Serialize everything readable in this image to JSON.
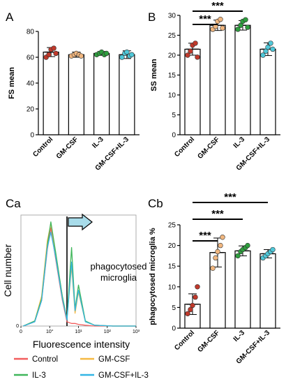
{
  "panels": {
    "A": "A",
    "B": "B",
    "Ca": "Ca",
    "Cb": "Cb"
  },
  "significance": "***",
  "chart_data": [
    {
      "id": "A",
      "type": "bar",
      "ylabel": "FS mean",
      "ylim": [
        0,
        80
      ],
      "yticks": [
        "0",
        "20",
        "40",
        "60",
        "80"
      ],
      "categories": [
        "Control",
        "GM-CSF",
        "IL-3",
        "GM-CSF+IL-3"
      ],
      "values": [
        64,
        62,
        63,
        62
      ],
      "errors": [
        3.5,
        2,
        1.5,
        3
      ],
      "points": [
        [
          60,
          62,
          66,
          67,
          63
        ],
        [
          61,
          62,
          63,
          62,
          61
        ],
        [
          62,
          63,
          64,
          62,
          63
        ],
        [
          60,
          63,
          64,
          61,
          62
        ]
      ],
      "point_colors": [
        "#c0392b",
        "#f0b67f",
        "#2e9e3e",
        "#4fc7d8"
      ],
      "significance": []
    },
    {
      "id": "B",
      "type": "bar",
      "ylabel": "SS mean",
      "ylim": [
        0,
        30
      ],
      "yticks": [
        "0",
        "5",
        "10",
        "15",
        "20",
        "25",
        "30"
      ],
      "categories": [
        "Control",
        "GM-CSF",
        "IL-3",
        "GM-CSF+IL-3"
      ],
      "values": [
        21.5,
        27.5,
        27.5,
        21.5
      ],
      "errors": [
        1.5,
        1.3,
        1.2,
        1.6
      ],
      "points": [
        [
          20,
          21,
          22.5,
          23,
          19.5
        ],
        [
          26.5,
          27.2,
          28.5,
          29,
          26.8
        ],
        [
          26.5,
          27.5,
          28.5,
          28.9,
          27
        ],
        [
          20,
          21,
          22,
          23,
          21.5
        ]
      ],
      "point_colors": [
        "#c0392b",
        "#f0b67f",
        "#2e9e3e",
        "#4fc7d8"
      ],
      "significance": [
        {
          "from": "Control",
          "to": "GM-CSF",
          "label": "***"
        },
        {
          "from": "Control",
          "to": "IL-3",
          "label": "***"
        }
      ]
    },
    {
      "id": "Cb",
      "type": "bar",
      "ylabel": "phagocytosed microglia %",
      "ylim": [
        0,
        25
      ],
      "yticks": [
        "0",
        "5",
        "10",
        "15",
        "20",
        "25"
      ],
      "categories": [
        "Control",
        "GM-CSF",
        "IL-3",
        "GM-CSF+IL-3"
      ],
      "values": [
        5.8,
        18.3,
        18.7,
        18
      ],
      "errors": [
        2.5,
        3.5,
        1.2,
        1
      ],
      "points": [
        [
          3.5,
          4.5,
          5.5,
          7.5,
          10
        ],
        [
          14.5,
          17,
          18.5,
          20,
          22
        ],
        [
          17.5,
          18.5,
          19,
          19.5,
          20
        ],
        [
          17,
          17.5,
          18,
          18.5,
          19
        ]
      ],
      "point_colors": [
        "#c0392b",
        "#f0b67f",
        "#2e9e3e",
        "#4fc7d8"
      ],
      "significance": [
        {
          "from": "Control",
          "to": "GM-CSF",
          "label": "***"
        },
        {
          "from": "Control",
          "to": "IL-3",
          "label": "***"
        },
        {
          "from": "Control",
          "to": "GM-CSF+IL-3",
          "label": "***"
        }
      ]
    },
    {
      "id": "Ca",
      "type": "line",
      "ylabel": "Cell number",
      "xlabel": "Fluorescence intensity",
      "xscale": "log",
      "xlim": [
        -1,
        4
      ],
      "xticks": [
        "0",
        "10°",
        "10¹",
        "10²",
        "10³"
      ],
      "annotation": [
        "phagocytosed",
        "microglia"
      ],
      "legend": [
        {
          "name": "Control",
          "color": "#f25d5d"
        },
        {
          "name": "GM-CSF",
          "color": "#f5b942"
        },
        {
          "name": "IL-3",
          "color": "#3fb65a"
        },
        {
          "name": "GM-CSF+IL-3",
          "color": "#33b5e5"
        }
      ],
      "series": [
        {
          "name": "Control",
          "color": "#f25d5d",
          "x": [
            -0.9,
            -0.4,
            -0.1,
            0.15,
            0.3,
            0.5,
            0.8,
            1.0,
            1.2,
            1.35,
            1.5,
            1.8,
            2.2,
            3.0,
            4.0
          ],
          "y": [
            0,
            5,
            30,
            90,
            115,
            80,
            30,
            5,
            3,
            3,
            2,
            1,
            0,
            0,
            0
          ]
        },
        {
          "name": "GM-CSF",
          "color": "#f5b942",
          "x": [
            -0.9,
            -0.4,
            -0.1,
            0.15,
            0.3,
            0.5,
            0.8,
            1.0,
            1.2,
            1.35,
            1.5,
            1.8,
            2.2,
            3.0,
            4.0
          ],
          "y": [
            0,
            6,
            35,
            100,
            120,
            85,
            35,
            8,
            70,
            15,
            40,
            5,
            1,
            0,
            0
          ]
        },
        {
          "name": "IL-3",
          "color": "#3fb65a",
          "x": [
            -0.9,
            -0.4,
            -0.1,
            0.15,
            0.3,
            0.5,
            0.8,
            1.0,
            1.2,
            1.35,
            1.5,
            1.8,
            2.2,
            3.0,
            4.0
          ],
          "y": [
            0,
            6,
            32,
            95,
            122,
            88,
            35,
            8,
            92,
            20,
            48,
            6,
            1,
            0,
            0
          ]
        },
        {
          "name": "GM-CSF+IL-3",
          "color": "#33b5e5",
          "x": [
            -0.9,
            -0.4,
            -0.1,
            0.15,
            0.3,
            0.5,
            0.8,
            1.0,
            1.2,
            1.35,
            1.5,
            1.8,
            2.2,
            3.0,
            4.0
          ],
          "y": [
            0,
            5,
            30,
            92,
            110,
            82,
            32,
            7,
            75,
            18,
            42,
            5,
            1,
            0,
            0
          ]
        }
      ]
    }
  ]
}
